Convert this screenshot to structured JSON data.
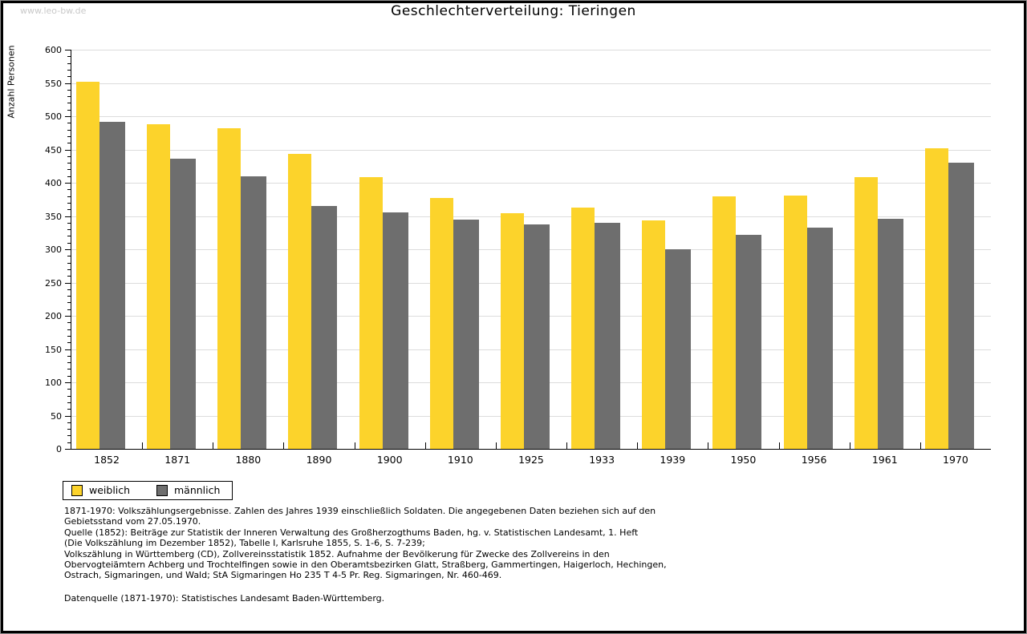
{
  "page": {
    "watermark": "www.leo-bw.de"
  },
  "chart_data": {
    "type": "bar",
    "title": "Geschlechterverteilung: Tieringen",
    "xlabel": "",
    "ylabel": "Anzahl Personen",
    "ylim": [
      0,
      600
    ],
    "ytick_step": 50,
    "yminortick_step": 10,
    "grid": true,
    "gridline_color": "#dcdcdc",
    "axis_color": "#000000",
    "legend_position": "bottom-left",
    "categories": [
      "1852",
      "1871",
      "1880",
      "1890",
      "1900",
      "1910",
      "1925",
      "1933",
      "1939",
      "1950",
      "1956",
      "1961",
      "1970"
    ],
    "series": [
      {
        "name": "weiblich",
        "color": "#fcd32b",
        "values": [
          552,
          488,
          482,
          443,
          408,
          377,
          354,
          363,
          343,
          379,
          381,
          408,
          452
        ]
      },
      {
        "name": "männlich",
        "color": "#6e6e6e",
        "values": [
          492,
          436,
          410,
          365,
          355,
          345,
          337,
          340,
          300,
          322,
          333,
          346,
          430
        ]
      }
    ]
  },
  "footer": {
    "lines": [
      "1871-1970: Volkszählungsergebnisse. Zahlen des Jahres 1939 einschließlich Soldaten. Die angegebenen Daten beziehen sich auf den",
      "Gebietsstand vom 27.05.1970.",
      "Quelle (1852): Beiträge zur Statistik der Inneren Verwaltung des Großherzogthums Baden, hg. v. Statistischen Landesamt, 1. Heft",
      "(Die Volkszählung im Dezember 1852), Tabelle I, Karlsruhe 1855, S. 1-6, S. 7-239;",
      "Volkszählung in Württemberg (CD), Zollvereinsstatistik 1852. Aufnahme der Bevölkerung für Zwecke des Zollvereins in den",
      "Obervogteiämtern Achberg und Trochtelfingen sowie in den Oberamtsbezirken Glatt, Straßberg, Gammertingen, Haigerloch, Hechingen,",
      "Ostrach, Sigmaringen, und Wald; StA Sigmaringen Ho 235 T 4-5 Pr. Reg. Sigmaringen, Nr. 460-469."
    ],
    "datasource": "Datenquelle (1871-1970): Statistisches Landesamt Baden-Württemberg."
  }
}
